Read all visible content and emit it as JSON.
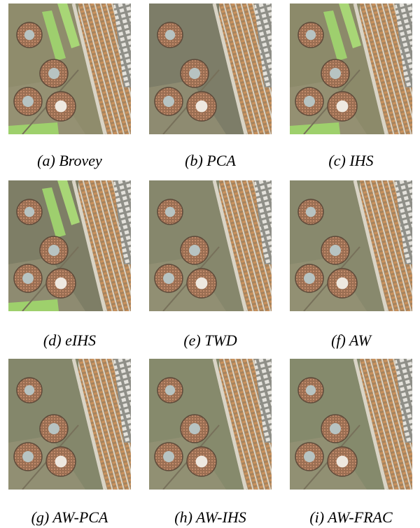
{
  "figure": {
    "panels": [
      {
        "caption": "(a) Brovey"
      },
      {
        "caption": "(b) PCA"
      },
      {
        "caption": "(c) IHS"
      },
      {
        "caption": "(d) eIHS"
      },
      {
        "caption": "(e) TWD"
      },
      {
        "caption": "(f) AW"
      },
      {
        "caption": "(g) AW-PCA"
      },
      {
        "caption": "(h) AW-IHS"
      },
      {
        "caption": "(i) AW-FRAC"
      }
    ]
  }
}
